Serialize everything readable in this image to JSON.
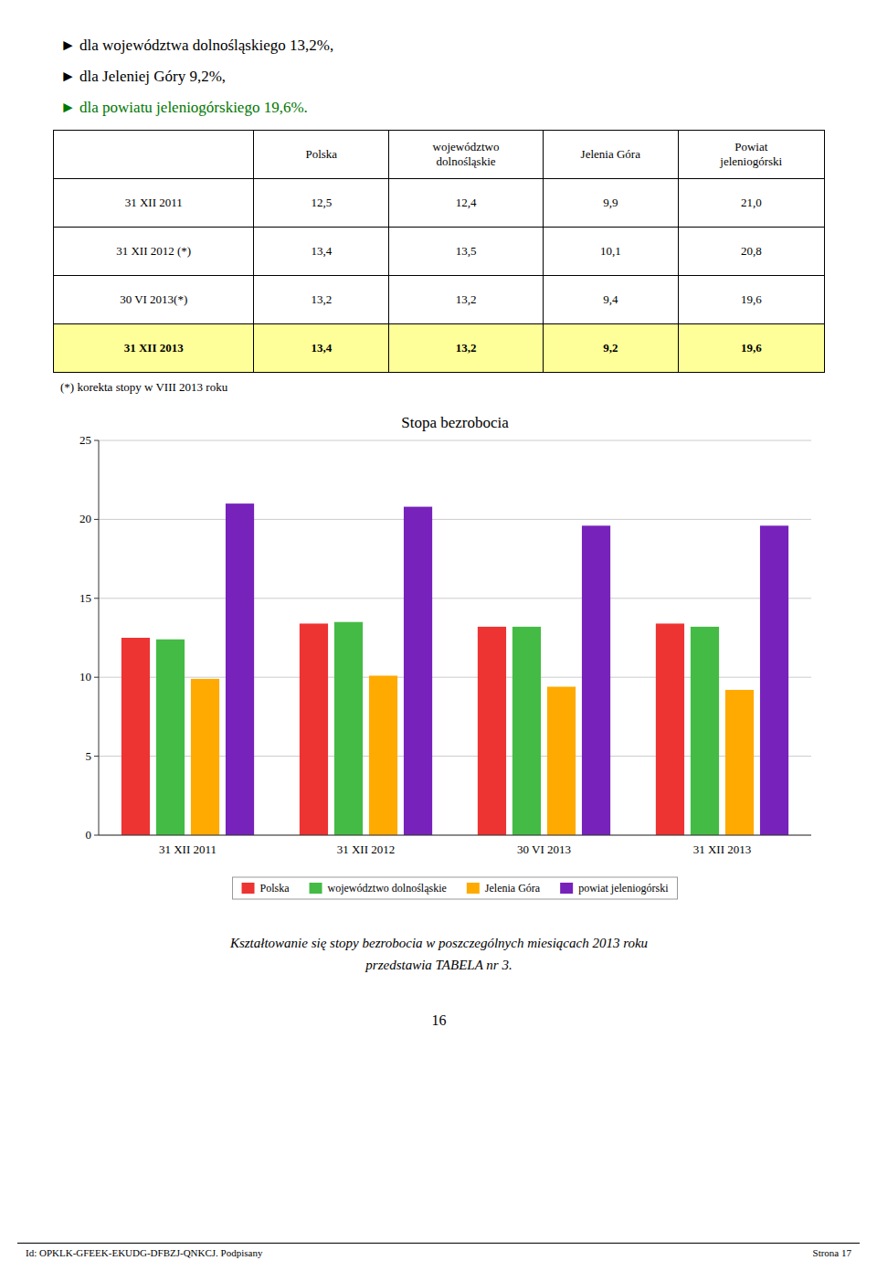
{
  "chart_data": {
    "type": "bar",
    "title": "Stopa bezrobocia",
    "categories": [
      "31 XII 2011",
      "31 XII 2012",
      "30 VI 2013",
      "31 XII 2013"
    ],
    "series": [
      {
        "name": "Polska",
        "color": "#EE3333",
        "values": [
          12.5,
          13.4,
          13.2,
          13.4
        ]
      },
      {
        "name": "województwo dolnośląskie",
        "color": "#44BB44",
        "values": [
          12.4,
          13.5,
          13.2,
          13.2
        ]
      },
      {
        "name": "Jelenia Góra",
        "color": "#FFAA00",
        "values": [
          9.9,
          10.1,
          9.4,
          9.2
        ]
      },
      {
        "name": "powiat jeleniogórski",
        "color": "#7722BB",
        "values": [
          21.0,
          20.8,
          19.6,
          19.6
        ]
      }
    ],
    "ylim": [
      0,
      25
    ],
    "yticks": [
      0,
      5,
      10,
      15,
      20,
      25
    ],
    "grid": true,
    "legend": "bottom"
  },
  "text_lines": [
    {
      "text": "► dla województwa dolnośląskiego 13,2%,",
      "color": "#000000"
    },
    {
      "text": "► dla Jeleniej Góry 9,2%,",
      "color": "#000000"
    },
    {
      "text": "► dla powiatu jeleniogórskiego 19,6%.",
      "color": "#007700"
    }
  ],
  "table": {
    "headers": [
      null,
      "Polska",
      "województwo\ndolnośląskie",
      "Jelenia Góra",
      "Powiat\njeleniogórski"
    ],
    "rows": [
      [
        "31 XII 2011",
        "12,5",
        "12,4",
        "9,9",
        "21,0"
      ],
      [
        "31 XII 2012 (*)",
        "13,4",
        "13,5",
        "10,1",
        "20,8"
      ],
      [
        "30 VI 2013(*)",
        "13,2",
        "13,2",
        "9,4",
        "19,6"
      ],
      [
        "31 XII 2013",
        "13,4",
        "13,2",
        "9,2",
        "19,6"
      ]
    ]
  },
  "footnote": "(*) korekta stopy w VIII 2013 roku",
  "bottom_text": [
    "Kształtowanie się stopy bezrobocia w poszczególnych miesiącach 2013 roku",
    "przedstawia TABELA nr 3."
  ],
  "page_number": "16",
  "footer_left": "Id: OPKLK-GFEEK-EKUDG-DFBZJ-QNKCJ. Podpisany",
  "footer_right": "Strona 17"
}
